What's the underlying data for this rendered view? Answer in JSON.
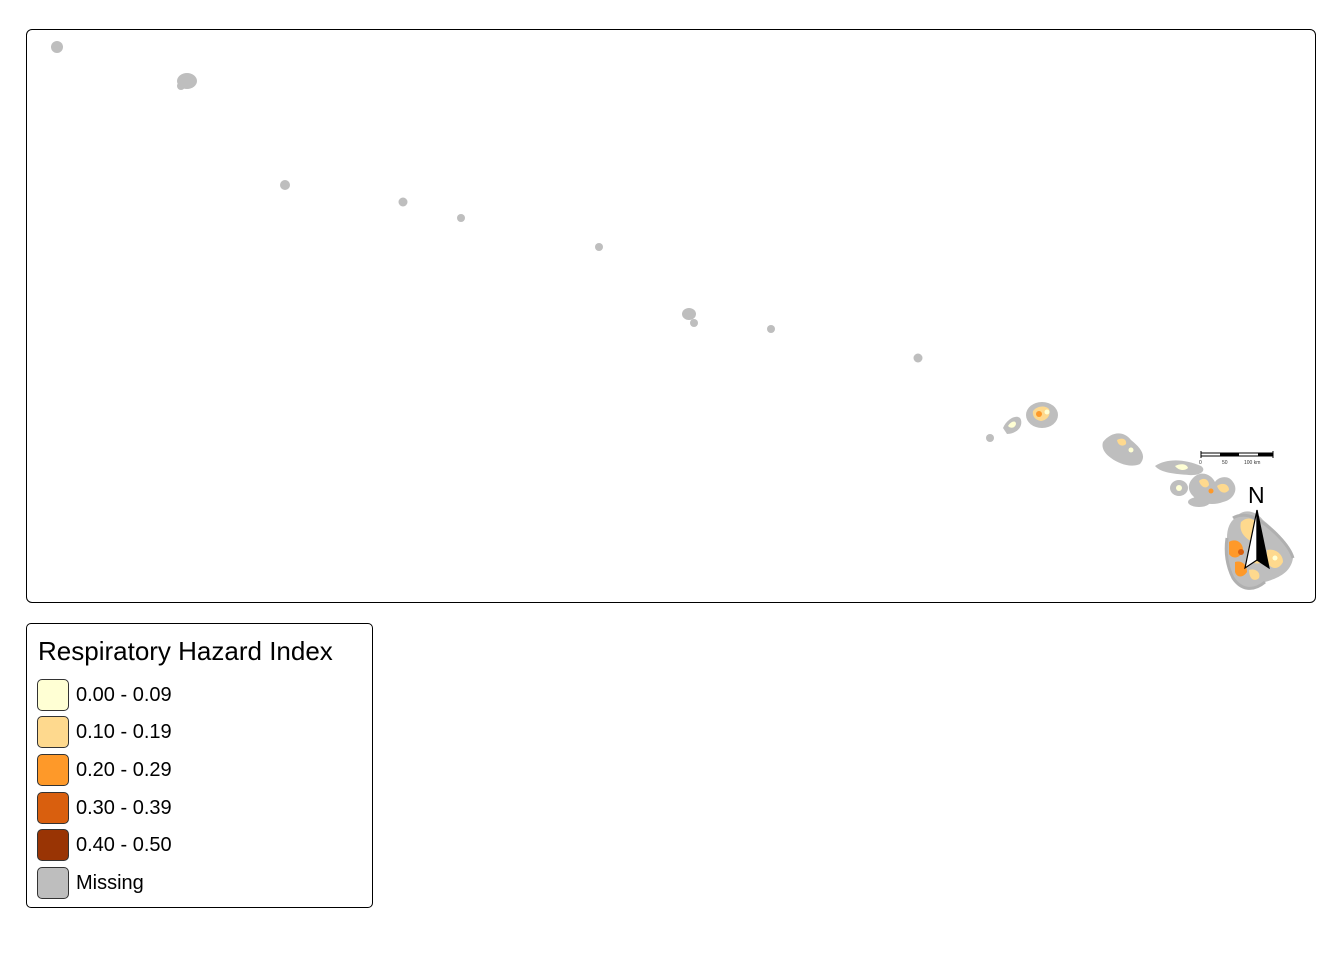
{
  "colors": {
    "missing": "#bebebe",
    "missing_outline": "#b0b0b0",
    "class_0": "#ffffd4",
    "class_1": "#fed98e",
    "class_2": "#fe9929",
    "class_3": "#d95f0e",
    "class_4": "#993404"
  },
  "map": {
    "north_arrow": {
      "label": "N"
    },
    "scale_bar": {
      "ticks": [
        "0",
        "50",
        "100 km"
      ]
    }
  },
  "legend": {
    "title": "Respiratory Hazard Index",
    "items": [
      {
        "label": "0.00 - 0.09",
        "color": "#ffffd4"
      },
      {
        "label": "0.10 - 0.19",
        "color": "#fed98e"
      },
      {
        "label": "0.20 - 0.29",
        "color": "#fe9929"
      },
      {
        "label": "0.30 - 0.39",
        "color": "#d95f0e"
      },
      {
        "label": "0.40 - 0.50",
        "color": "#993404"
      },
      {
        "label": "Missing",
        "color": "#bebebe"
      }
    ]
  }
}
